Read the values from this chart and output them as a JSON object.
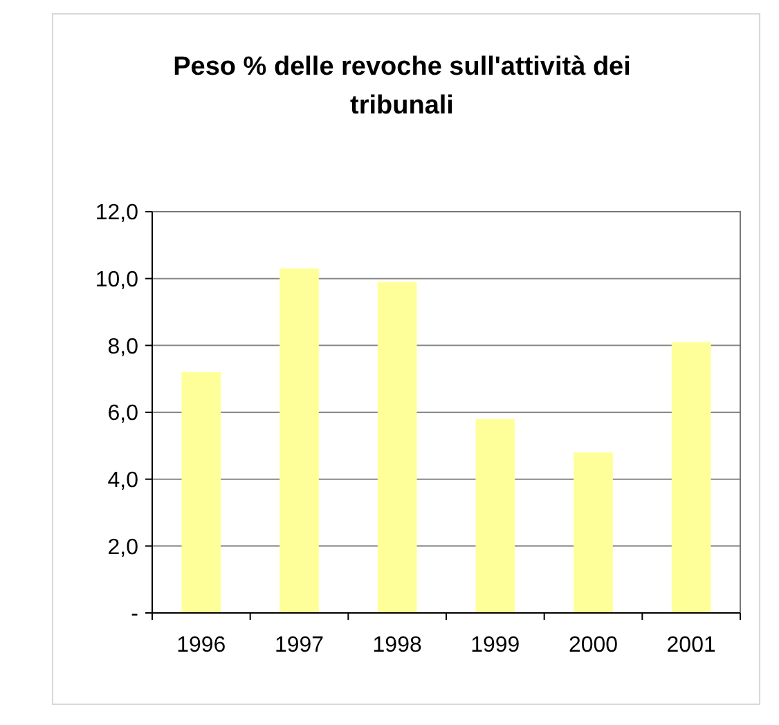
{
  "chart_data": {
    "type": "bar",
    "title": "Peso % delle revoche sull'attività dei tribunali",
    "categories": [
      "1996",
      "1997",
      "1998",
      "1999",
      "2000",
      "2001"
    ],
    "values": [
      7.2,
      10.3,
      9.9,
      5.8,
      4.8,
      8.1
    ],
    "color": "#ffff99",
    "ylim": [
      0,
      12
    ],
    "yticks": [
      {
        "value": 0,
        "label": "-"
      },
      {
        "value": 2,
        "label": "2,0"
      },
      {
        "value": 4,
        "label": "4,0"
      },
      {
        "value": 6,
        "label": "6,0"
      },
      {
        "value": 8,
        "label": "8,0"
      },
      {
        "value": 10,
        "label": "10,0"
      },
      {
        "value": 12,
        "label": "12,0"
      }
    ],
    "grid": "y"
  }
}
